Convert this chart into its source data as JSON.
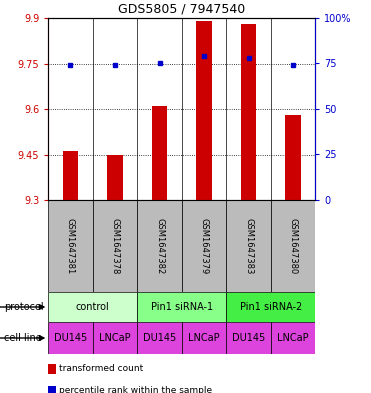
{
  "title": "GDS5805 / 7947540",
  "samples": [
    "GSM1647381",
    "GSM1647378",
    "GSM1647382",
    "GSM1647379",
    "GSM1647383",
    "GSM1647380"
  ],
  "red_values": [
    9.46,
    9.45,
    9.61,
    9.89,
    9.88,
    9.58
  ],
  "blue_values": [
    74,
    74,
    75,
    79,
    78,
    74
  ],
  "ylim_left": [
    9.3,
    9.9
  ],
  "ylim_right": [
    0,
    100
  ],
  "yticks_left": [
    9.3,
    9.45,
    9.6,
    9.75,
    9.9
  ],
  "ytick_labels_left": [
    "9.3",
    "9.45",
    "9.6",
    "9.75",
    "9.9"
  ],
  "yticks_right": [
    0,
    25,
    50,
    75,
    100
  ],
  "ytick_labels_right": [
    "0",
    "25",
    "50",
    "75",
    "100%"
  ],
  "protocols": [
    {
      "label": "control",
      "span": [
        0,
        2
      ],
      "color": "#ccffcc"
    },
    {
      "label": "Pin1 siRNA-1",
      "span": [
        2,
        4
      ],
      "color": "#88ff88"
    },
    {
      "label": "Pin1 siRNA-2",
      "span": [
        4,
        6
      ],
      "color": "#44ee44"
    }
  ],
  "cell_lines": [
    "DU145",
    "LNCaP",
    "DU145",
    "LNCaP",
    "DU145",
    "LNCaP"
  ],
  "cell_line_color": "#dd44dd",
  "sample_bg_color": "#bbbbbb",
  "bar_color": "#cc0000",
  "dot_color": "#0000cc",
  "legend_items": [
    {
      "color": "#cc0000",
      "label": "transformed count"
    },
    {
      "color": "#0000cc",
      "label": "percentile rank within the sample"
    }
  ],
  "protocol_label": "protocol",
  "cell_line_label": "cell line"
}
